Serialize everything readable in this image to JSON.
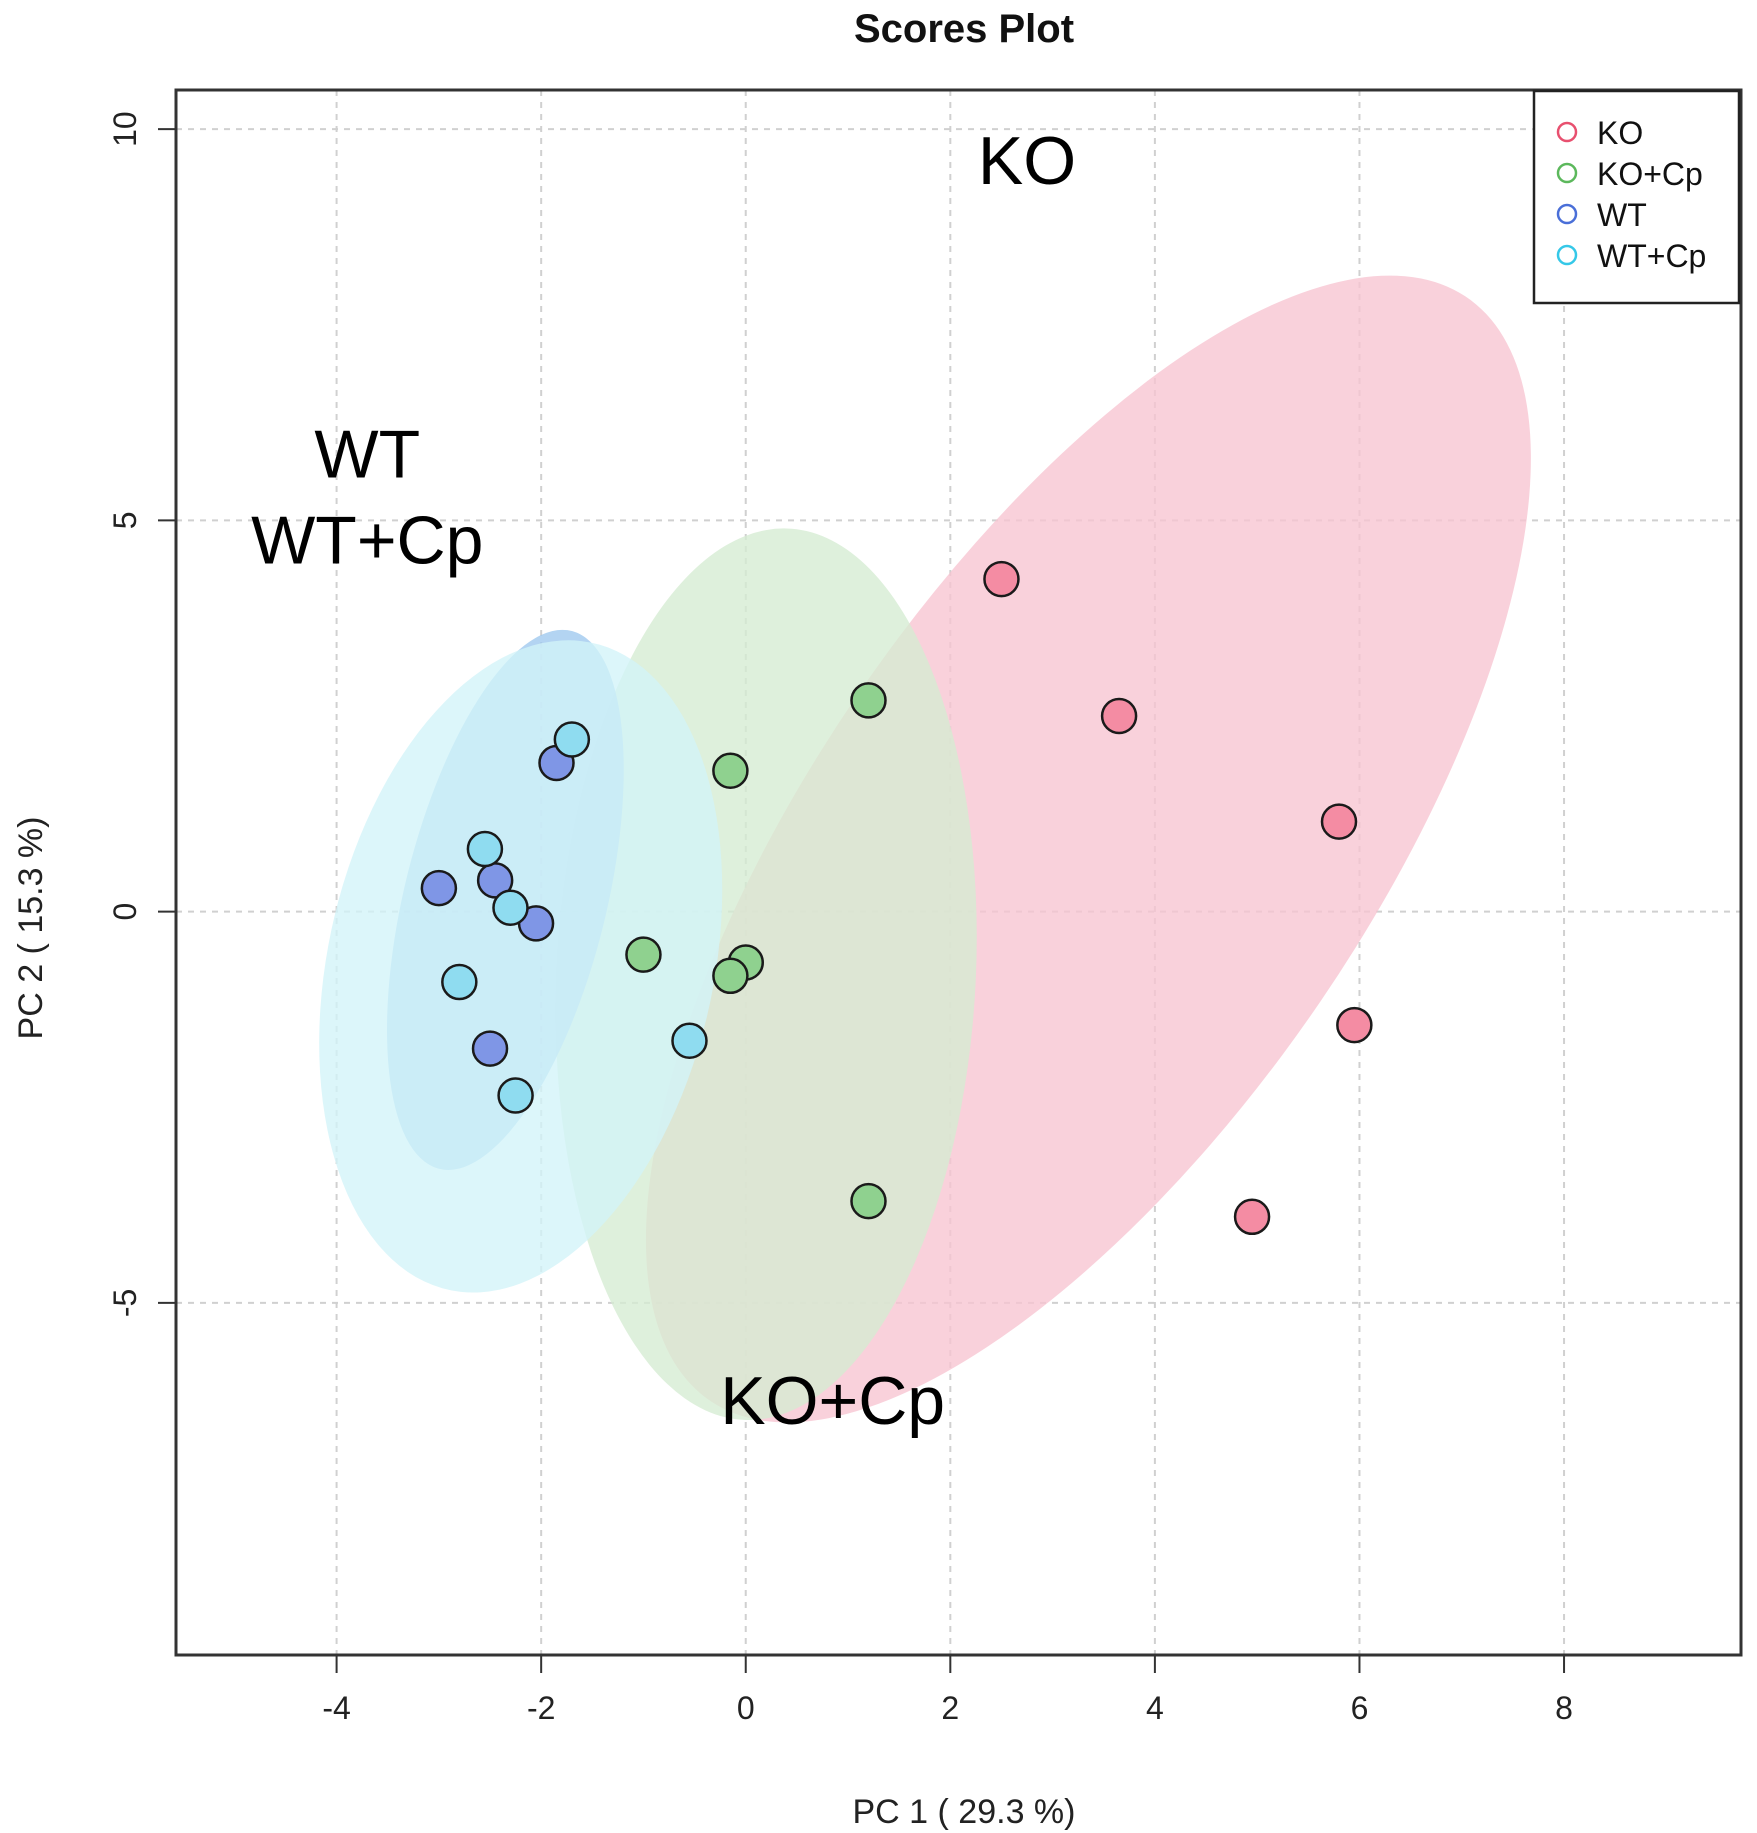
{
  "chart_data": {
    "type": "scatter",
    "title": "Scores Plot",
    "xlabel": "PC 1 ( 29.3 %)",
    "ylabel": "PC 2 ( 15.3 %)",
    "xlim": [
      -5.57,
      9.73
    ],
    "ylim": [
      -9.5,
      10.5
    ],
    "xticks": [
      -4,
      -2,
      0,
      2,
      4,
      6,
      8
    ],
    "yticks": [
      -5,
      0,
      5,
      10
    ],
    "grid": true,
    "legend_position": "top-right",
    "series": [
      {
        "name": "KO",
        "color": "#e8506f",
        "fill": "#f48ca3",
        "ellipse_fill": "#f7c4d1",
        "points": [
          [
            2.5,
            4.25
          ],
          [
            3.65,
            2.5
          ],
          [
            5.8,
            1.15
          ],
          [
            5.95,
            -1.45
          ],
          [
            4.95,
            -3.9
          ]
        ],
        "ellipse": {
          "cx": 3.35,
          "cy": 0.8,
          "rx": 8.0,
          "ry": 2.9,
          "angle_deg": -64.5
        }
      },
      {
        "name": "KO+Cp",
        "color": "#5cb85c",
        "fill": "#8fd18f",
        "ellipse_fill": "#d5ecd2",
        "points": [
          [
            1.2,
            2.7
          ],
          [
            -0.15,
            1.8
          ],
          [
            -1.0,
            -0.55
          ],
          [
            0.0,
            -0.65
          ],
          [
            -0.15,
            -0.82
          ],
          [
            1.2,
            -3.7
          ]
        ],
        "ellipse": {
          "cx": 0.2,
          "cy": -0.8,
          "rx": 5.7,
          "ry": 2.05,
          "angle_deg": -88.0
        }
      },
      {
        "name": "WT",
        "color": "#4a6fd8",
        "fill": "#7f96e6",
        "ellipse_fill": "#9ec8ee",
        "points": [
          [
            -1.85,
            1.9
          ],
          [
            -3.0,
            0.3
          ],
          [
            -2.45,
            0.4
          ],
          [
            -2.05,
            -0.15
          ],
          [
            -2.5,
            -1.75
          ]
        ],
        "ellipse": {
          "cx": -2.35,
          "cy": 0.15,
          "rx": 3.5,
          "ry": 1.0,
          "angle_deg": -80.0
        }
      },
      {
        "name": "WT+Cp",
        "color": "#35c8e8",
        "fill": "#8fdcf0",
        "ellipse_fill": "#d2f3f9",
        "points": [
          [
            -1.7,
            2.2
          ],
          [
            -2.55,
            0.8
          ],
          [
            -2.3,
            0.05
          ],
          [
            -2.8,
            -0.9
          ],
          [
            -0.55,
            -1.65
          ],
          [
            -2.25,
            -2.35
          ]
        ],
        "ellipse": {
          "cx": -2.2,
          "cy": -0.7,
          "rx": 4.2,
          "ry": 1.9,
          "angle_deg": -82.0
        }
      }
    ],
    "annotations": [
      {
        "text": "KO",
        "x": 2.75,
        "y": 9.3
      },
      {
        "text": "WT",
        "x": -3.7,
        "y": 5.55
      },
      {
        "text": "WT+Cp",
        "x": -3.7,
        "y": 4.45
      },
      {
        "text": "KO+Cp",
        "x": 0.85,
        "y": -6.55
      }
    ]
  }
}
